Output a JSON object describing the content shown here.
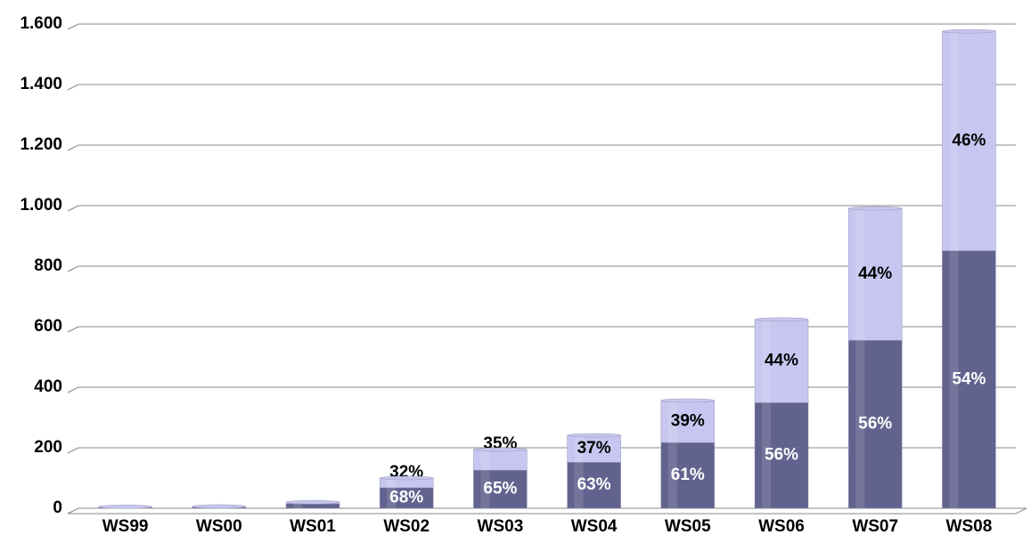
{
  "chart_data": {
    "type": "stacked_bar",
    "categories": [
      "WS99",
      "WS00",
      "WS01",
      "WS02",
      "WS03",
      "WS04",
      "WS05",
      "WS06",
      "WS07",
      "WS08"
    ],
    "series": [
      {
        "color": "#62628f",
        "label_color": "#ffffff",
        "values": [
          3,
          4,
          15,
          68,
          126,
          152,
          217,
          349,
          555,
          851
        ],
        "segment_labels": [
          null,
          null,
          null,
          "68%",
          "65%",
          "63%",
          "61%",
          "56%",
          "56%",
          "54%"
        ]
      },
      {
        "color": "#c6c6f0",
        "label_color": "#000000",
        "values": [
          2,
          2,
          5,
          32,
          68,
          89,
          139,
          275,
          436,
          725
        ],
        "segment_labels": [
          null,
          null,
          null,
          "32%",
          "35%",
          "37%",
          "39%",
          "44%",
          "44%",
          "46%"
        ]
      }
    ],
    "ylim": [
      0,
      1600
    ],
    "yticks": [
      0,
      200,
      400,
      600,
      800,
      {
        "value": 1000,
        "label": "1.000"
      },
      {
        "value": 1200,
        "label": "1.200"
      },
      {
        "value": 1400,
        "label": "1.400"
      },
      {
        "value": 1600,
        "label": "1.600"
      }
    ],
    "grid": true
  }
}
